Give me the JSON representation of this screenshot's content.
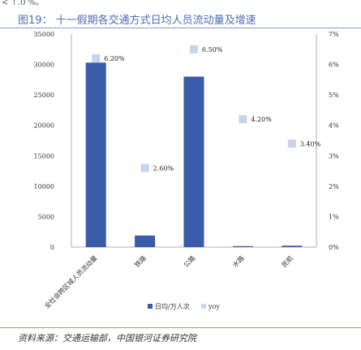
{
  "page": {
    "top_fragment": "< ↑.0 %。",
    "title": "图19：  十一假期各交通方式日均人员流动量及增速",
    "source": "资料来源：交通运输部，中国银河证券研究院"
  },
  "chart_data": {
    "type": "bar",
    "categories": [
      "全社会跨区域人员流动量",
      "铁路",
      "公路",
      "水路",
      "民航"
    ],
    "series": [
      {
        "name": "日均/万人次",
        "type": "bar",
        "axis": "left",
        "color": "#3a5ba8",
        "values": [
          30300,
          1900,
          28000,
          150,
          230
        ]
      },
      {
        "name": "yoy",
        "type": "scatter",
        "axis": "right",
        "color": "#c6d4ee",
        "values": [
          6.2,
          2.6,
          6.5,
          4.2,
          3.4
        ],
        "labels": [
          "6.20%",
          "2.60%",
          "6.50%",
          "4.20%",
          "3.40%"
        ]
      }
    ],
    "y_left": {
      "min": 0,
      "max": 35000,
      "ticks": [
        "0",
        "5000",
        "10000",
        "15000",
        "20000",
        "25000",
        "30000",
        "35000"
      ]
    },
    "y_right": {
      "min": 0,
      "max": 7,
      "ticks": [
        "0%",
        "1%",
        "2%",
        "3%",
        "4%",
        "5%",
        "6%",
        "7%"
      ]
    },
    "legend": {
      "position": "bottom",
      "items": [
        "日均/万人次",
        "yoy"
      ]
    },
    "grid": false
  }
}
